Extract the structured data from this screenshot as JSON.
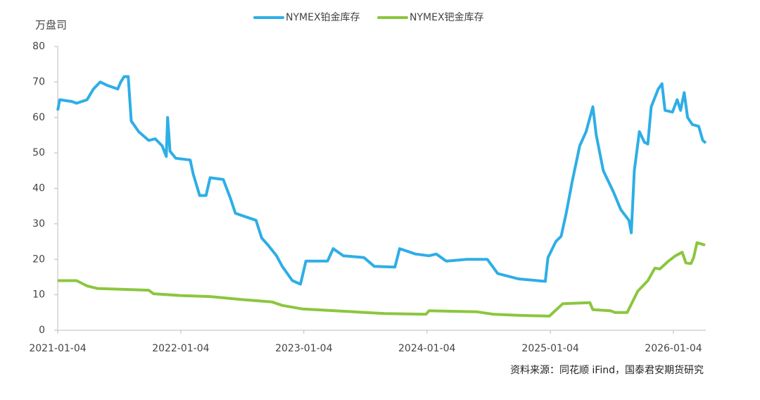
{
  "chart_data": {
    "type": "line",
    "y_label": "万盘司",
    "source": "资料来源：同花顺 iFind，国泰君安期货研究",
    "legend": "top",
    "xlim": [
      "2021-01-04",
      "2026-04-10"
    ],
    "xticks": [
      "2021-01-04",
      "2022-01-04",
      "2023-01-04",
      "2024-01-04",
      "2025-01-04",
      "2026-01-04"
    ],
    "ylim": [
      0,
      80
    ],
    "yticks": [
      0,
      10,
      20,
      30,
      40,
      50,
      60,
      70,
      80
    ],
    "series": [
      {
        "name": "NYMEX铂金库存",
        "color": "#2eaee6",
        "x": [
          "2021-01-04",
          "2021-01-10",
          "2021-02-15",
          "2021-03-01",
          "2021-04-01",
          "2021-04-20",
          "2021-05-10",
          "2021-06-01",
          "2021-07-01",
          "2021-07-10",
          "2021-07-20",
          "2021-08-01",
          "2021-08-10",
          "2021-09-01",
          "2021-10-01",
          "2021-10-20",
          "2021-11-10",
          "2021-11-22",
          "2021-11-26",
          "2021-12-03",
          "2021-12-20",
          "2022-02-01",
          "2022-02-10",
          "2022-03-01",
          "2022-03-20",
          "2022-04-01",
          "2022-05-10",
          "2022-06-01",
          "2022-06-15",
          "2022-07-15",
          "2022-08-15",
          "2022-09-01",
          "2022-09-20",
          "2022-10-15",
          "2022-11-01",
          "2022-12-01",
          "2022-12-25",
          "2023-01-10",
          "2023-03-15",
          "2023-04-01",
          "2023-05-01",
          "2023-07-01",
          "2023-08-01",
          "2023-10-01",
          "2023-10-15",
          "2023-12-01",
          "2024-01-10",
          "2024-02-01",
          "2024-03-01",
          "2024-05-01",
          "2024-07-01",
          "2024-08-01",
          "2024-10-01",
          "2024-12-20",
          "2024-12-28",
          "2025-01-20",
          "2025-02-05",
          "2025-02-20",
          "2025-03-10",
          "2025-04-01",
          "2025-04-20",
          "2025-05-10",
          "2025-05-20",
          "2025-06-10",
          "2025-07-10",
          "2025-08-01",
          "2025-08-25",
          "2025-09-01",
          "2025-09-10",
          "2025-09-25",
          "2025-10-10",
          "2025-10-20",
          "2025-10-30",
          "2025-11-20",
          "2025-12-01",
          "2025-12-10",
          "2026-01-01",
          "2026-01-15",
          "2026-01-25",
          "2026-02-05",
          "2026-02-15",
          "2026-03-01",
          "2026-03-20",
          "2026-04-01",
          "2026-04-10"
        ],
        "values": [
          62,
          65,
          64.5,
          64,
          65,
          68,
          70,
          69,
          68,
          70,
          71.5,
          71.5,
          59,
          56,
          53.5,
          54,
          52,
          49,
          60,
          50.5,
          48.5,
          48,
          44,
          38,
          38,
          43,
          42.5,
          37,
          33,
          32,
          31,
          26,
          24,
          21,
          18,
          14,
          13,
          19.5,
          19.5,
          23,
          21,
          20.5,
          18,
          17.8,
          23,
          21.5,
          21,
          21.5,
          19.5,
          20,
          20,
          16,
          14.5,
          13.8,
          20.5,
          25,
          26.5,
          33,
          42,
          52,
          56,
          63,
          55,
          45,
          39,
          34,
          31,
          27.5,
          45,
          56,
          53,
          52.5,
          63,
          68,
          69.5,
          62,
          61.5,
          65,
          62,
          67,
          60,
          58,
          57.5,
          53.5,
          52.8
        ]
      },
      {
        "name": "NYMEX钯金库存",
        "color": "#8cc63f",
        "x": [
          "2021-01-04",
          "2021-03-01",
          "2021-04-01",
          "2021-05-01",
          "2021-08-01",
          "2021-10-01",
          "2021-10-15",
          "2022-01-01",
          "2022-04-01",
          "2022-07-01",
          "2022-10-01",
          "2022-11-01",
          "2023-01-01",
          "2023-06-01",
          "2023-09-01",
          "2024-01-01",
          "2024-01-10",
          "2024-06-01",
          "2024-07-20",
          "2024-10-01",
          "2025-01-01",
          "2025-02-10",
          "2025-05-01",
          "2025-05-10",
          "2025-07-01",
          "2025-07-15",
          "2025-08-20",
          "2025-09-20",
          "2025-10-20",
          "2025-11-10",
          "2025-11-25",
          "2025-12-20",
          "2026-01-10",
          "2026-01-30",
          "2026-02-10",
          "2026-02-25",
          "2026-03-05",
          "2026-03-15",
          "2026-04-08"
        ],
        "values": [
          14,
          14,
          12.5,
          11.8,
          11.5,
          11.3,
          10.3,
          9.8,
          9.5,
          8.7,
          8,
          7,
          6,
          5.2,
          4.7,
          4.5,
          5.5,
          5.2,
          4.5,
          4.2,
          4,
          7.5,
          7.8,
          5.8,
          5.5,
          5,
          5,
          11,
          14,
          17.5,
          17.3,
          19.5,
          21,
          22,
          19,
          18.8,
          20.5,
          24.7,
          24
        ]
      }
    ]
  }
}
